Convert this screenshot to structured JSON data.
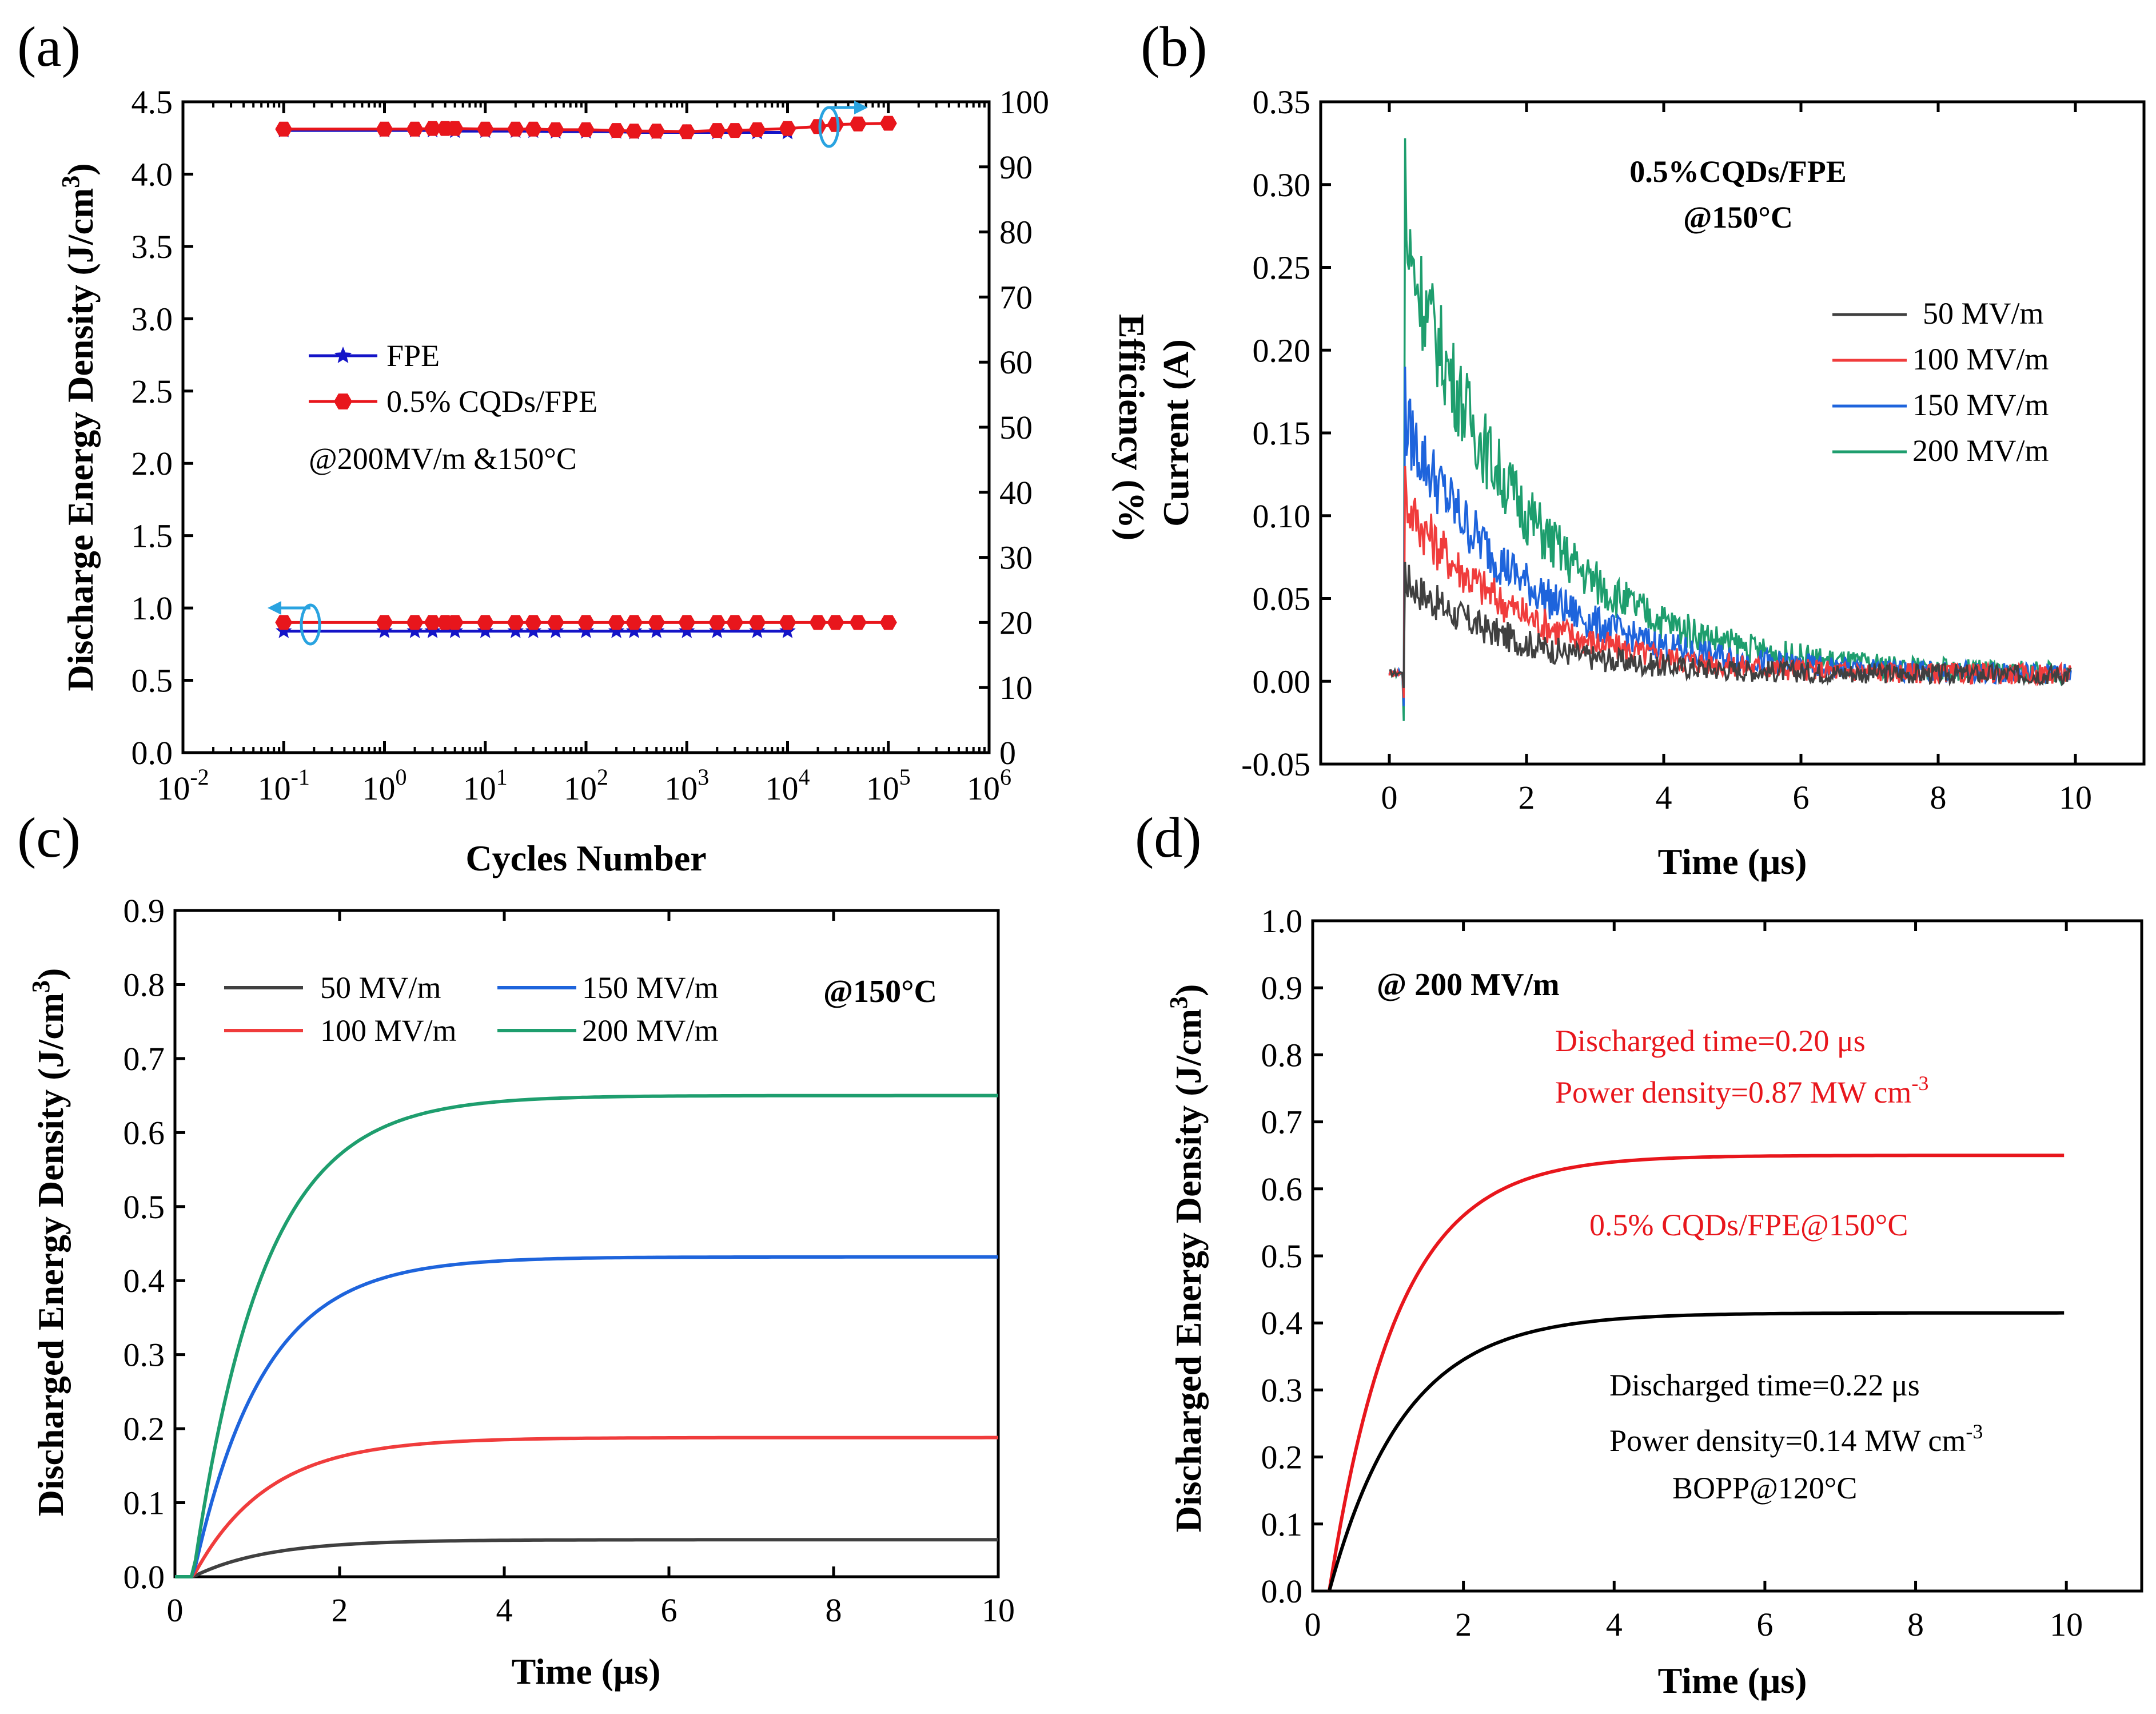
{
  "chart_data": [
    {
      "panel_label": "(a)",
      "type": "line",
      "xlabel": "Cycles Number",
      "ylabel": "Discharge Energy Density (J/cm3)",
      "ylabel_parts": [
        "Discharge Energy Density (J/cm",
        "3",
        ")"
      ],
      "y2label": "Efficiency (%)",
      "x_scale": "log",
      "xlim": [
        0.01,
        1000000
      ],
      "ylim": [
        0,
        4.5
      ],
      "y2lim": [
        0,
        100
      ],
      "xticks": [
        {
          "v": 0.01,
          "base": "10",
          "exp": "-2"
        },
        {
          "v": 0.1,
          "base": "10",
          "exp": "-1"
        },
        {
          "v": 1,
          "base": "10",
          "exp": "0"
        },
        {
          "v": 10,
          "base": "10",
          "exp": "1"
        },
        {
          "v": 100,
          "base": "10",
          "exp": "2"
        },
        {
          "v": 1000,
          "base": "10",
          "exp": "3"
        },
        {
          "v": 10000,
          "base": "10",
          "exp": "4"
        },
        {
          "v": 100000,
          "base": "10",
          "exp": "5"
        },
        {
          "v": 1000000,
          "base": "10",
          "exp": "6"
        }
      ],
      "yticks": [
        "0.0",
        "0.5",
        "1.0",
        "1.5",
        "2.0",
        "2.5",
        "3.0",
        "3.5",
        "4.0",
        "4.5"
      ],
      "y2ticks": [
        "0",
        "10",
        "20",
        "30",
        "40",
        "50",
        "60",
        "70",
        "80",
        "90",
        "100"
      ],
      "legend": [
        {
          "label": "FPE",
          "color": "#1414c8",
          "marker": "star"
        },
        {
          "label": "0.5% CQDs/FPE",
          "color": "#e8161c",
          "marker": "hexagon"
        }
      ],
      "annotation": "@200MV/m &150°C",
      "series": [
        {
          "name": "FPE",
          "axis": "left",
          "color": "#1414c8",
          "x": [
            0.1,
            1,
            2,
            3,
            5,
            10,
            20,
            30,
            50,
            100,
            200,
            300,
            500,
            1000,
            2000,
            5000,
            10000
          ],
          "y": [
            0.84,
            0.84,
            0.84,
            0.84,
            0.84,
            0.84,
            0.84,
            0.84,
            0.84,
            0.84,
            0.84,
            0.84,
            0.84,
            0.84,
            0.84,
            0.84,
            0.84
          ]
        },
        {
          "name": "0.5% CQDs/FPE",
          "axis": "left",
          "color": "#e8161c",
          "x": [
            0.1,
            1,
            2,
            3,
            4,
            5,
            10,
            20,
            30,
            50,
            100,
            200,
            300,
            500,
            1000,
            2000,
            3000,
            5000,
            10000,
            20000,
            30000,
            50000,
            100000
          ],
          "y": [
            0.9,
            0.9,
            0.9,
            0.9,
            0.9,
            0.9,
            0.9,
            0.9,
            0.9,
            0.9,
            0.9,
            0.9,
            0.9,
            0.9,
            0.9,
            0.9,
            0.9,
            0.9,
            0.9,
            0.9,
            0.9,
            0.9,
            0.9
          ]
        },
        {
          "name": "FPE",
          "axis": "right",
          "color": "#1414c8",
          "x": [
            0.1,
            1,
            2,
            3,
            5,
            10,
            20,
            30,
            50,
            100,
            200,
            300,
            500,
            1000,
            2000,
            5000,
            10000
          ],
          "y": [
            95.6,
            95.6,
            95.6,
            95.6,
            95.5,
            95.5,
            95.5,
            95.5,
            95.4,
            95.4,
            95.4,
            95.3,
            95.3,
            95.3,
            95.3,
            95.3,
            95.3
          ]
        },
        {
          "name": "0.5% CQDs/FPE",
          "axis": "right",
          "color": "#e8161c",
          "x": [
            0.1,
            1,
            2,
            3,
            4,
            5,
            10,
            20,
            30,
            50,
            100,
            200,
            300,
            500,
            1000,
            2000,
            3000,
            5000,
            10000,
            20000,
            30000,
            50000,
            100000
          ],
          "y": [
            95.8,
            95.8,
            95.8,
            95.9,
            95.9,
            95.9,
            95.8,
            95.8,
            95.8,
            95.7,
            95.7,
            95.6,
            95.5,
            95.5,
            95.4,
            95.6,
            95.6,
            95.7,
            95.9,
            96.2,
            96.5,
            96.6,
            96.7
          ]
        }
      ]
    },
    {
      "panel_label": "(b)",
      "type": "line",
      "xlabel": "Time (μs)",
      "ylabel": "Current (A)",
      "xlim": [
        -1,
        11
      ],
      "ylim": [
        -0.05,
        0.35
      ],
      "xticks": [
        "0",
        "2",
        "4",
        "6",
        "8",
        "10"
      ],
      "yticks": [
        "-0.05",
        "0.00",
        "0.05",
        "0.10",
        "0.15",
        "0.20",
        "0.25",
        "0.30",
        "0.35"
      ],
      "annotation_lines": [
        "0.5%CQDs/FPE",
        "@150°C"
      ],
      "series": [
        {
          "name": "50 MV/m",
          "color": "#404040",
          "peak": 0.072,
          "tau": 1.6,
          "min": -0.004
        },
        {
          "name": "100 MV/m",
          "color": "#f03c3c",
          "peak": 0.13,
          "tau": 1.65,
          "min": -0.01
        },
        {
          "name": "150 MV/m",
          "color": "#1e64dc",
          "peak": 0.19,
          "tau": 1.75,
          "min": -0.015
        },
        {
          "name": "200 MV/m",
          "color": "#1e9e6e",
          "peak": 0.328,
          "tau": 1.8,
          "min": -0.024
        }
      ],
      "t_on": 0.22
    },
    {
      "panel_label": "(c)",
      "type": "line",
      "xlabel": "Time (μs)",
      "ylabel": "Discharged Energy Density (J/cm3)",
      "ylabel_parts": [
        "Discharged Energy Density (J/cm",
        "3",
        ")"
      ],
      "xlim": [
        0,
        10
      ],
      "ylim": [
        0,
        0.9
      ],
      "xticks": [
        "0",
        "2",
        "4",
        "6",
        "8",
        "10"
      ],
      "yticks": [
        "0.0",
        "0.1",
        "0.2",
        "0.3",
        "0.4",
        "0.5",
        "0.6",
        "0.7",
        "0.8",
        "0.9"
      ],
      "annotation": "@150°C",
      "t_on": 0.22,
      "series": [
        {
          "name": "50 MV/m",
          "color": "#404040",
          "final": 0.05,
          "tau": 0.9
        },
        {
          "name": "100 MV/m",
          "color": "#f03c3c",
          "final": 0.188,
          "tau": 0.9
        },
        {
          "name": "150 MV/m",
          "color": "#1e64dc",
          "final": 0.432,
          "tau": 0.85
        },
        {
          "name": "200 MV/m",
          "color": "#1e9e6e",
          "final": 0.65,
          "tau": 0.85
        }
      ]
    },
    {
      "panel_label": "(d)",
      "type": "line",
      "xlabel": "Time (μs)",
      "ylabel": "Discharged Energy Density (J/cm3)",
      "ylabel_parts": [
        "Discharged Energy Density (J/cm",
        "3",
        ")"
      ],
      "xlim": [
        0,
        11
      ],
      "ylim": [
        0,
        1.0
      ],
      "xticks": [
        "0",
        "2",
        "4",
        "6",
        "8",
        "10"
      ],
      "yticks": [
        "0.0",
        "0.1",
        "0.2",
        "0.3",
        "0.4",
        "0.5",
        "0.6",
        "0.7",
        "0.8",
        "0.9",
        "1.0"
      ],
      "annotation": "@ 200 MV/m",
      "t_on": 0.22,
      "series": [
        {
          "name": "0.5% CQDs/FPE@150°C",
          "color": "#e8161c",
          "final": 0.65,
          "tau": 0.9
        },
        {
          "name": "BOPP@120°C",
          "color": "#000000",
          "final": 0.415,
          "tau": 1.0
        }
      ],
      "notes": {
        "red_line1": "Discharged time=0.20 μs",
        "red_line2": "Power density=0.87 MW cm",
        "red_sup": "-3",
        "red_label": "0.5% CQDs/FPE@150°C",
        "black_line1": "Discharged time=0.22 μs",
        "black_line2": "Power density=0.14 MW cm",
        "black_sup": "-3",
        "black_label": "BOPP@120°C"
      }
    }
  ]
}
